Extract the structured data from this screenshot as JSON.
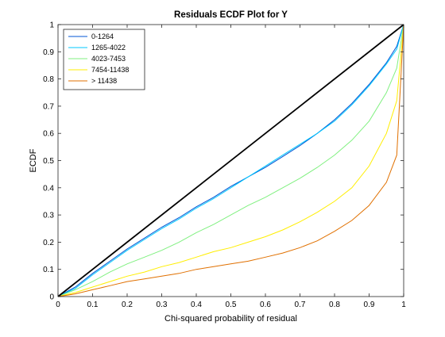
{
  "chart_data": {
    "type": "line",
    "title": "Residuals ECDF Plot for Y",
    "xlabel": "Chi-squared probability of residual",
    "ylabel": "ECDF",
    "xlim": [
      0,
      1
    ],
    "ylim": [
      0,
      1
    ],
    "xticks": [
      "0",
      "0.1",
      "0.2",
      "0.3",
      "0.4",
      "0.5",
      "0.6",
      "0.7",
      "0.8",
      "0.9",
      "1"
    ],
    "yticks": [
      "0",
      "0.1",
      "0.2",
      "0.3",
      "0.4",
      "0.5",
      "0.6",
      "0.7",
      "0.8",
      "0.9",
      "1"
    ],
    "grid": false,
    "legend_position": "top-left",
    "reference_line": {
      "x": [
        0,
        1
      ],
      "y": [
        0,
        1
      ],
      "color": "#000000"
    },
    "series": [
      {
        "name": "0-1264",
        "color": "#0055d4",
        "x": [
          0,
          0.05,
          0.1,
          0.15,
          0.2,
          0.25,
          0.3,
          0.35,
          0.4,
          0.45,
          0.5,
          0.55,
          0.6,
          0.65,
          0.7,
          0.75,
          0.8,
          0.85,
          0.9,
          0.95,
          0.98,
          1
        ],
        "y": [
          0,
          0.035,
          0.085,
          0.13,
          0.175,
          0.215,
          0.255,
          0.29,
          0.33,
          0.365,
          0.405,
          0.44,
          0.475,
          0.515,
          0.555,
          0.6,
          0.65,
          0.71,
          0.78,
          0.86,
          0.92,
          1
        ]
      },
      {
        "name": "1265-4022",
        "color": "#00c8ff",
        "x": [
          0,
          0.05,
          0.1,
          0.15,
          0.2,
          0.25,
          0.3,
          0.35,
          0.4,
          0.45,
          0.5,
          0.55,
          0.6,
          0.65,
          0.7,
          0.75,
          0.8,
          0.85,
          0.9,
          0.95,
          0.98,
          1
        ],
        "y": [
          0,
          0.03,
          0.08,
          0.125,
          0.17,
          0.21,
          0.25,
          0.285,
          0.325,
          0.36,
          0.4,
          0.44,
          0.48,
          0.52,
          0.56,
          0.6,
          0.645,
          0.705,
          0.775,
          0.855,
          0.91,
          1
        ]
      },
      {
        "name": "4023-7453",
        "color": "#80f080",
        "x": [
          0,
          0.05,
          0.1,
          0.15,
          0.2,
          0.25,
          0.3,
          0.35,
          0.4,
          0.45,
          0.5,
          0.55,
          0.6,
          0.65,
          0.7,
          0.75,
          0.8,
          0.85,
          0.9,
          0.95,
          0.98,
          1
        ],
        "y": [
          0,
          0.025,
          0.055,
          0.09,
          0.12,
          0.145,
          0.17,
          0.2,
          0.235,
          0.265,
          0.3,
          0.335,
          0.365,
          0.4,
          0.435,
          0.475,
          0.52,
          0.575,
          0.645,
          0.75,
          0.84,
          1
        ]
      },
      {
        "name": "7454-11438",
        "color": "#ffee00",
        "x": [
          0,
          0.05,
          0.1,
          0.15,
          0.2,
          0.25,
          0.3,
          0.35,
          0.4,
          0.45,
          0.5,
          0.55,
          0.6,
          0.65,
          0.7,
          0.75,
          0.8,
          0.85,
          0.9,
          0.95,
          0.98,
          1
        ],
        "y": [
          0,
          0.015,
          0.035,
          0.055,
          0.075,
          0.09,
          0.11,
          0.125,
          0.145,
          0.165,
          0.18,
          0.2,
          0.22,
          0.245,
          0.275,
          0.31,
          0.35,
          0.4,
          0.48,
          0.6,
          0.72,
          1
        ]
      },
      {
        "name": "> 11438",
        "color": "#e07000",
        "x": [
          0,
          0.05,
          0.1,
          0.15,
          0.2,
          0.25,
          0.3,
          0.35,
          0.4,
          0.45,
          0.5,
          0.55,
          0.6,
          0.65,
          0.7,
          0.75,
          0.8,
          0.85,
          0.9,
          0.95,
          0.98,
          1
        ],
        "y": [
          0,
          0.01,
          0.025,
          0.04,
          0.055,
          0.065,
          0.075,
          0.085,
          0.1,
          0.11,
          0.12,
          0.13,
          0.145,
          0.16,
          0.18,
          0.205,
          0.24,
          0.28,
          0.335,
          0.42,
          0.52,
          1
        ]
      }
    ]
  }
}
